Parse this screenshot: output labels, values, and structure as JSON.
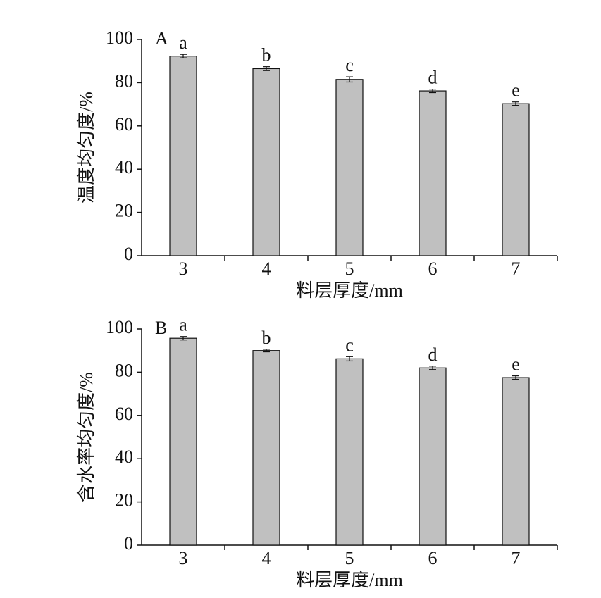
{
  "chart_data": [
    {
      "type": "bar",
      "panel_label": "A",
      "ylabel": "温度均匀度/%",
      "xlabel": "料层厚度/mm",
      "categories": [
        "3",
        "4",
        "5",
        "6",
        "7"
      ],
      "values": [
        92.3,
        86.5,
        81.5,
        76.2,
        70.3
      ],
      "errors": [
        0.8,
        0.9,
        1.2,
        0.8,
        0.8
      ],
      "annotations": [
        "a",
        "b",
        "c",
        "d",
        "e"
      ],
      "color": "#c0c0c0",
      "ylim": [
        0,
        100
      ],
      "yticks": [
        0,
        20,
        40,
        60,
        80,
        100
      ]
    },
    {
      "type": "bar",
      "panel_label": "B",
      "ylabel": "含水率均匀度/%",
      "xlabel": "料层厚度/mm",
      "categories": [
        "3",
        "4",
        "5",
        "6",
        "7"
      ],
      "values": [
        95.7,
        90.0,
        86.2,
        82.0,
        77.5
      ],
      "errors": [
        0.8,
        0.6,
        1.0,
        0.8,
        0.8
      ],
      "annotations": [
        "a",
        "b",
        "c",
        "d",
        "e"
      ],
      "color": "#c0c0c0",
      "ylim": [
        0,
        100
      ],
      "yticks": [
        0,
        20,
        40,
        60,
        80,
        100
      ]
    }
  ]
}
